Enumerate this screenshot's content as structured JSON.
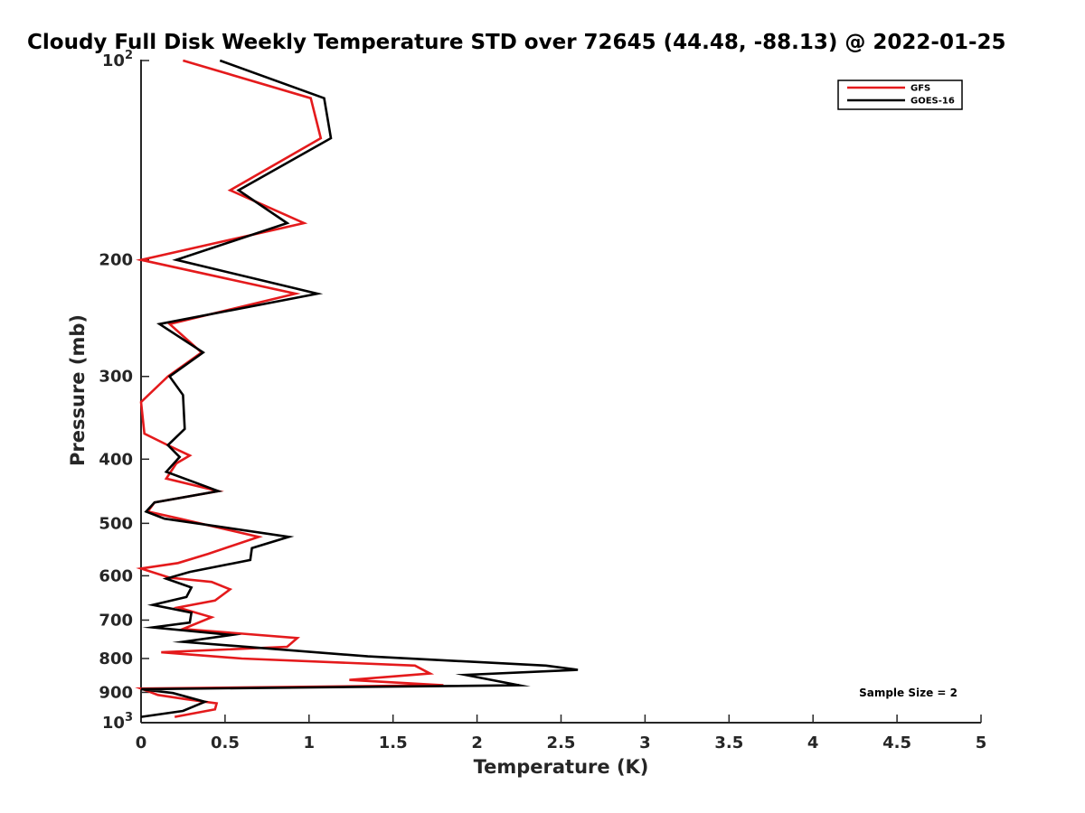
{
  "chart_data": {
    "type": "line",
    "title": "Cloudy Full Disk Weekly Temperature STD over 72645 (44.48, -88.13) @ 2022-01-25",
    "xlabel": "Temperature (K)",
    "ylabel": "Pressure (mb)",
    "xlim": [
      0,
      5
    ],
    "ylim": [
      100,
      1000
    ],
    "y_scale": "log",
    "y_reversed": true,
    "x_ticks": [
      "0",
      "0.5",
      "1",
      "1.5",
      "2",
      "2.5",
      "3",
      "3.5",
      "4",
      "4.5",
      "5"
    ],
    "y_ticks": [
      {
        "value": 100,
        "base": "10",
        "exp": "2"
      },
      {
        "value": 200,
        "label": "200"
      },
      {
        "value": 300,
        "label": "300"
      },
      {
        "value": 400,
        "label": "400"
      },
      {
        "value": 500,
        "label": "500"
      },
      {
        "value": 600,
        "label": "600"
      },
      {
        "value": 700,
        "label": "700"
      },
      {
        "value": 800,
        "label": "800"
      },
      {
        "value": 900,
        "label": "900"
      },
      {
        "value": 1000,
        "base": "10",
        "exp": "3"
      }
    ],
    "legend_position": "top-right",
    "grid": false,
    "annotation": "Sample Size = 2",
    "series": [
      {
        "name": "GFS",
        "color": "#e41a1c",
        "points": [
          [
            0.25,
            100
          ],
          [
            1.01,
            114
          ],
          [
            1.07,
            131
          ],
          [
            0.53,
            157
          ],
          [
            0.97,
            176
          ],
          [
            0.0,
            200
          ],
          [
            0.92,
            225
          ],
          [
            0.17,
            250
          ],
          [
            0.36,
            276
          ],
          [
            0.16,
            300
          ],
          [
            0.0,
            328
          ],
          [
            0.02,
            366
          ],
          [
            0.15,
            380
          ],
          [
            0.29,
            395
          ],
          [
            0.21,
            406
          ],
          [
            0.15,
            428
          ],
          [
            0.46,
            447
          ],
          [
            0.08,
            465
          ],
          [
            0.04,
            480
          ],
          [
            0.23,
            492
          ],
          [
            0.7,
            524
          ],
          [
            0.4,
            556
          ],
          [
            0.22,
            574
          ],
          [
            0.0,
            585
          ],
          [
            0.17,
            604
          ],
          [
            0.42,
            613
          ],
          [
            0.53,
            629
          ],
          [
            0.44,
            654
          ],
          [
            0.22,
            670
          ],
          [
            0.42,
            693
          ],
          [
            0.25,
            722
          ],
          [
            0.93,
            745
          ],
          [
            0.87,
            768
          ],
          [
            0.12,
            783
          ],
          [
            0.6,
            800
          ],
          [
            1.63,
            820
          ],
          [
            1.72,
            843
          ],
          [
            1.24,
            862
          ],
          [
            1.8,
            878
          ],
          [
            0.0,
            888
          ],
          [
            0.1,
            908
          ],
          [
            0.26,
            921
          ],
          [
            0.45,
            935
          ],
          [
            0.44,
            955
          ],
          [
            0.2,
            980
          ]
        ]
      },
      {
        "name": "GOES-16",
        "color": "#000000",
        "points": [
          [
            0.47,
            100
          ],
          [
            1.09,
            114
          ],
          [
            1.13,
            131
          ],
          [
            0.58,
            157
          ],
          [
            0.87,
            176
          ],
          [
            0.21,
            200
          ],
          [
            1.05,
            225
          ],
          [
            0.11,
            250
          ],
          [
            0.37,
            276
          ],
          [
            0.17,
            300
          ],
          [
            0.25,
            320
          ],
          [
            0.26,
            360
          ],
          [
            0.16,
            381
          ],
          [
            0.23,
            397
          ],
          [
            0.15,
            418
          ],
          [
            0.46,
            447
          ],
          [
            0.08,
            465
          ],
          [
            0.03,
            480
          ],
          [
            0.14,
            492
          ],
          [
            0.88,
            524
          ],
          [
            0.66,
            545
          ],
          [
            0.65,
            568
          ],
          [
            0.29,
            592
          ],
          [
            0.15,
            606
          ],
          [
            0.3,
            625
          ],
          [
            0.27,
            646
          ],
          [
            0.07,
            664
          ],
          [
            0.3,
            682
          ],
          [
            0.29,
            706
          ],
          [
            0.07,
            718
          ],
          [
            0.54,
            737
          ],
          [
            0.25,
            755
          ],
          [
            1.35,
            794
          ],
          [
            2.41,
            820
          ],
          [
            2.6,
            832
          ],
          [
            1.93,
            847
          ],
          [
            2.25,
            878
          ],
          [
            0.0,
            890
          ],
          [
            0.19,
            902
          ],
          [
            0.38,
            930
          ],
          [
            0.25,
            960
          ],
          [
            0.0,
            980
          ]
        ]
      }
    ]
  }
}
